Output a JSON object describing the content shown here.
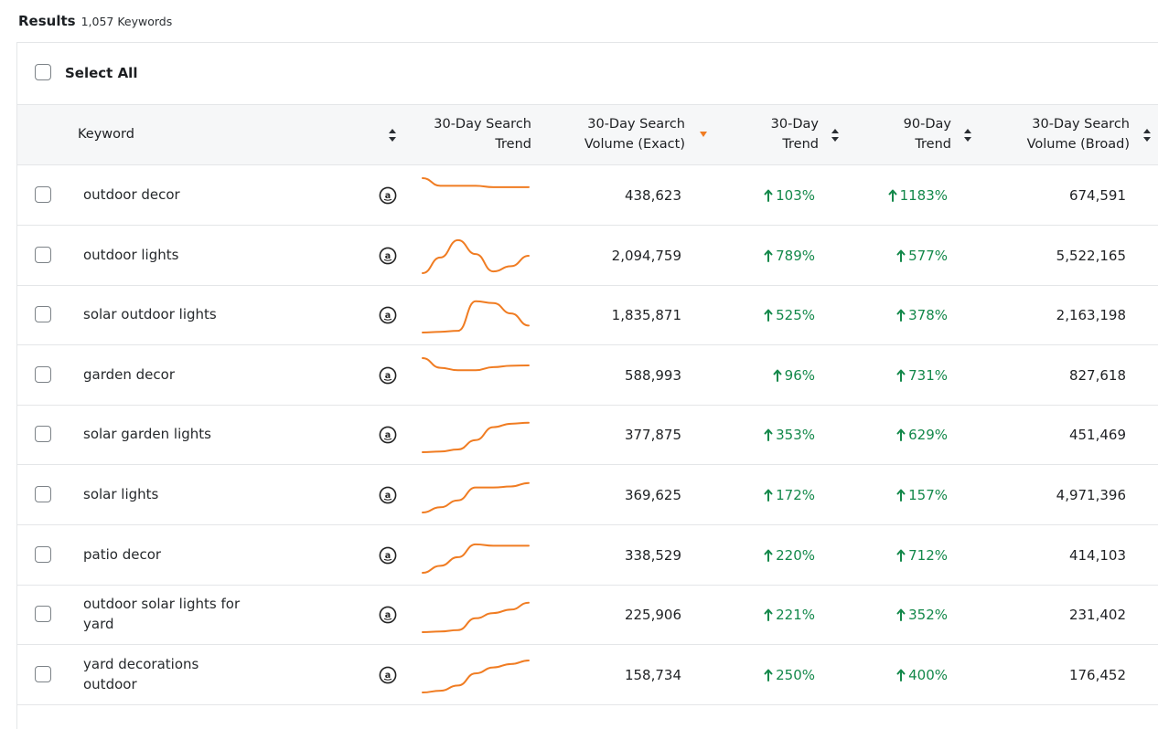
{
  "results": {
    "title": "Results",
    "count": "1,057 Keywords"
  },
  "select_all": {
    "label": "Select All"
  },
  "columns": {
    "keyword": "Keyword",
    "trend_line1": "30-Day Search",
    "trend_line2": "Trend",
    "vol_exact_line1": "30-Day Search",
    "vol_exact_line2": "Volume (Exact)",
    "trend30_line1": "30-Day",
    "trend30_line2": "Trend",
    "trend90_line1": "90-Day",
    "trend90_line2": "Trend",
    "vol_broad_line1": "30-Day Search",
    "vol_broad_line2": "Volume (Broad)"
  },
  "colors": {
    "accent": "#f07c22",
    "positive": "#13884a"
  },
  "rows": [
    {
      "keyword": "outdoor decor",
      "volume_exact": "438,623",
      "trend_30": "103%",
      "trend_90": "1183%",
      "volume_broad": "674,591",
      "spark": [
        1.0,
        0.78,
        0.78,
        0.78,
        0.74,
        0.74,
        0.74
      ]
    },
    {
      "keyword": "outdoor lights",
      "volume_exact": "2,094,759",
      "trend_30": "789%",
      "trend_90": "577%",
      "volume_broad": "5,522,165",
      "spark": [
        0.0,
        0.45,
        0.95,
        0.55,
        0.05,
        0.2,
        0.5
      ]
    },
    {
      "keyword": "solar outdoor lights",
      "volume_exact": "1,835,871",
      "trend_30": "525%",
      "trend_90": "378%",
      "volume_broad": "2,163,198",
      "spark": [
        0.0,
        0.02,
        0.05,
        0.9,
        0.85,
        0.55,
        0.2
      ]
    },
    {
      "keyword": "garden decor",
      "volume_exact": "588,993",
      "trend_30": "96%",
      "trend_90": "731%",
      "volume_broad": "827,618",
      "spark": [
        1.0,
        0.72,
        0.65,
        0.65,
        0.74,
        0.78,
        0.79
      ]
    },
    {
      "keyword": "solar garden lights",
      "volume_exact": "377,875",
      "trend_30": "353%",
      "trend_90": "629%",
      "volume_broad": "451,469",
      "spark": [
        0.0,
        0.02,
        0.08,
        0.35,
        0.72,
        0.82,
        0.85
      ]
    },
    {
      "keyword": "solar lights",
      "volume_exact": "369,625",
      "trend_30": "172%",
      "trend_90": "157%",
      "volume_broad": "4,971,396",
      "spark": [
        0.0,
        0.15,
        0.35,
        0.72,
        0.72,
        0.75,
        0.85
      ]
    },
    {
      "keyword": "patio decor",
      "volume_exact": "338,529",
      "trend_30": "220%",
      "trend_90": "712%",
      "volume_broad": "414,103",
      "spark": [
        0.0,
        0.2,
        0.45,
        0.82,
        0.78,
        0.78,
        0.78
      ]
    },
    {
      "keyword": "outdoor solar lights for yard",
      "volume_exact": "225,906",
      "trend_30": "221%",
      "trend_90": "352%",
      "volume_broad": "231,402",
      "spark": [
        0.0,
        0.02,
        0.06,
        0.4,
        0.55,
        0.65,
        0.85
      ]
    },
    {
      "keyword": "yard decorations outdoor",
      "volume_exact": "158,734",
      "trend_30": "250%",
      "trend_90": "400%",
      "volume_broad": "176,452",
      "spark": [
        0.0,
        0.05,
        0.2,
        0.55,
        0.72,
        0.82,
        0.92
      ]
    }
  ]
}
